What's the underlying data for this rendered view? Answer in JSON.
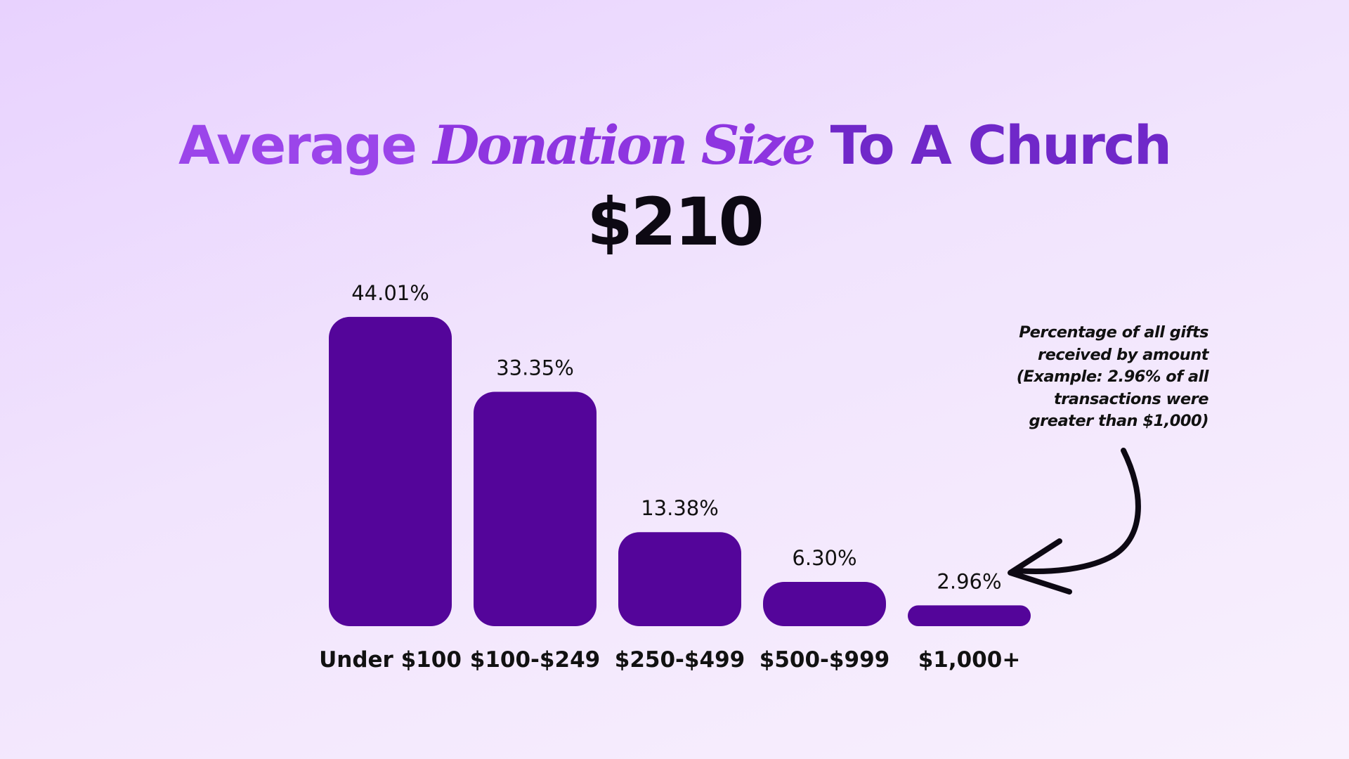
{
  "title": {
    "prefix": "Average ",
    "emphasis": "Donation Size",
    "suffix": " To A Church"
  },
  "average_value": "$210",
  "annotation": "Percentage of all gifts\nreceived by amount\n(Example: 2.96% of all\ntransactions were\ngreater than $1,000)",
  "colors": {
    "bar": "#54059a",
    "title_accent": "#9b45ea",
    "title_dark": "#7028c9"
  },
  "chart_data": {
    "type": "bar",
    "categories": [
      "Under $100",
      "$100-$249",
      "$250-$499",
      "$500-$999",
      "$1,000+"
    ],
    "values": [
      44.01,
      33.35,
      13.38,
      6.3,
      2.96
    ],
    "value_labels": [
      "44.01%",
      "33.35%",
      "13.38%",
      "6.30%",
      "2.96%"
    ],
    "title": "Average Donation Size To A Church",
    "xlabel": "",
    "ylabel": "",
    "grid": false,
    "legend": "none"
  }
}
